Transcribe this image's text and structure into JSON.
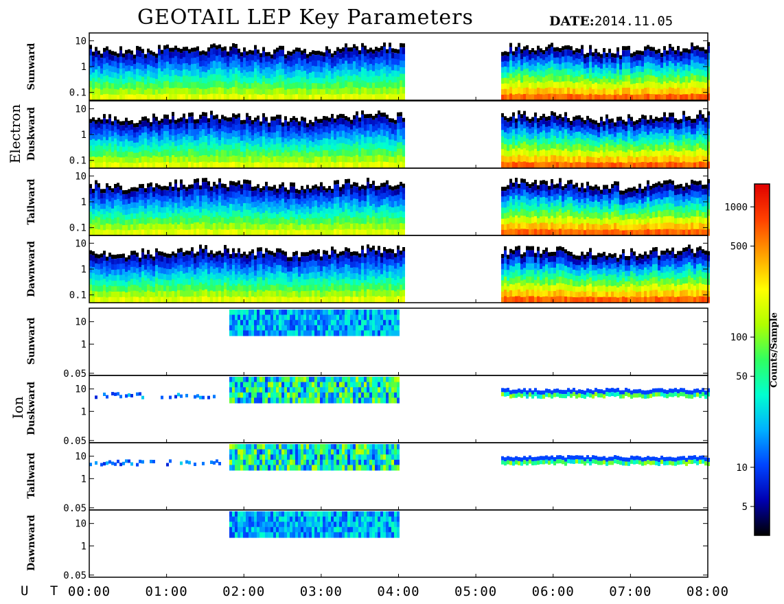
{
  "header": {
    "title": "GEOTAIL LEP Key Parameters",
    "date_label": "DATE:",
    "date_value": "2014.11.05"
  },
  "x_axis_label": "U T",
  "chart_data": {
    "type": "heatmap",
    "x_ticks": [
      "00:00",
      "01:00",
      "02:00",
      "03:00",
      "04:00",
      "05:00",
      "06:00",
      "07:00",
      "08:00"
    ],
    "x_range_hours": [
      0,
      8
    ],
    "data_gaps_hours": [
      [
        4.05,
        5.3
      ]
    ],
    "groups": [
      {
        "name": "Electron",
        "panels": [
          {
            "direction": "Sunward",
            "y_ticks": [
              "10",
              "1",
              "0.1"
            ],
            "ylim": [
              0.05,
              20
            ],
            "y_scale": "log"
          },
          {
            "direction": "Duskward",
            "y_ticks": [
              "10",
              "1",
              "0.1"
            ],
            "ylim": [
              0.05,
              20
            ],
            "y_scale": "log"
          },
          {
            "direction": "Tailward",
            "y_ticks": [
              "10",
              "1",
              "0.1"
            ],
            "ylim": [
              0.05,
              20
            ],
            "y_scale": "log"
          },
          {
            "direction": "Dawnward",
            "y_ticks": [
              "10",
              "1",
              "0.1"
            ],
            "ylim": [
              0.05,
              20
            ],
            "y_scale": "log"
          }
        ]
      },
      {
        "name": "Ion",
        "panels": [
          {
            "direction": "Sunward",
            "y_ticks": [
              "10",
              "1",
              "0.05"
            ],
            "ylim": [
              0.04,
              40
            ],
            "y_scale": "log"
          },
          {
            "direction": "Duskward",
            "y_ticks": [
              "10",
              "1",
              "0.05"
            ],
            "ylim": [
              0.04,
              40
            ],
            "y_scale": "log"
          },
          {
            "direction": "Tailward",
            "y_ticks": [
              "10",
              "1",
              "0.05"
            ],
            "ylim": [
              0.04,
              40
            ],
            "y_scale": "log"
          },
          {
            "direction": "Dawnward",
            "y_ticks": [
              "10",
              "1",
              "0.05"
            ],
            "ylim": [
              0.04,
              40
            ],
            "y_scale": "log"
          }
        ]
      }
    ],
    "colorbar": {
      "label": "Counts/Sample",
      "scale": "log",
      "range": [
        3,
        1500
      ],
      "ticks": [
        {
          "label": "1000",
          "value": 1000
        },
        {
          "label": "500",
          "value": 500
        },
        {
          "label": "100",
          "value": 100
        },
        {
          "label": "50",
          "value": 50
        },
        {
          "label": "10",
          "value": 10
        },
        {
          "label": "5",
          "value": 5
        }
      ],
      "colors": [
        "#000000",
        "#0000b0",
        "#0044ff",
        "#00b0ff",
        "#00ffd0",
        "#30ff60",
        "#b0ff00",
        "#ffff00",
        "#ffa000",
        "#ff4000",
        "#e00000"
      ]
    }
  }
}
